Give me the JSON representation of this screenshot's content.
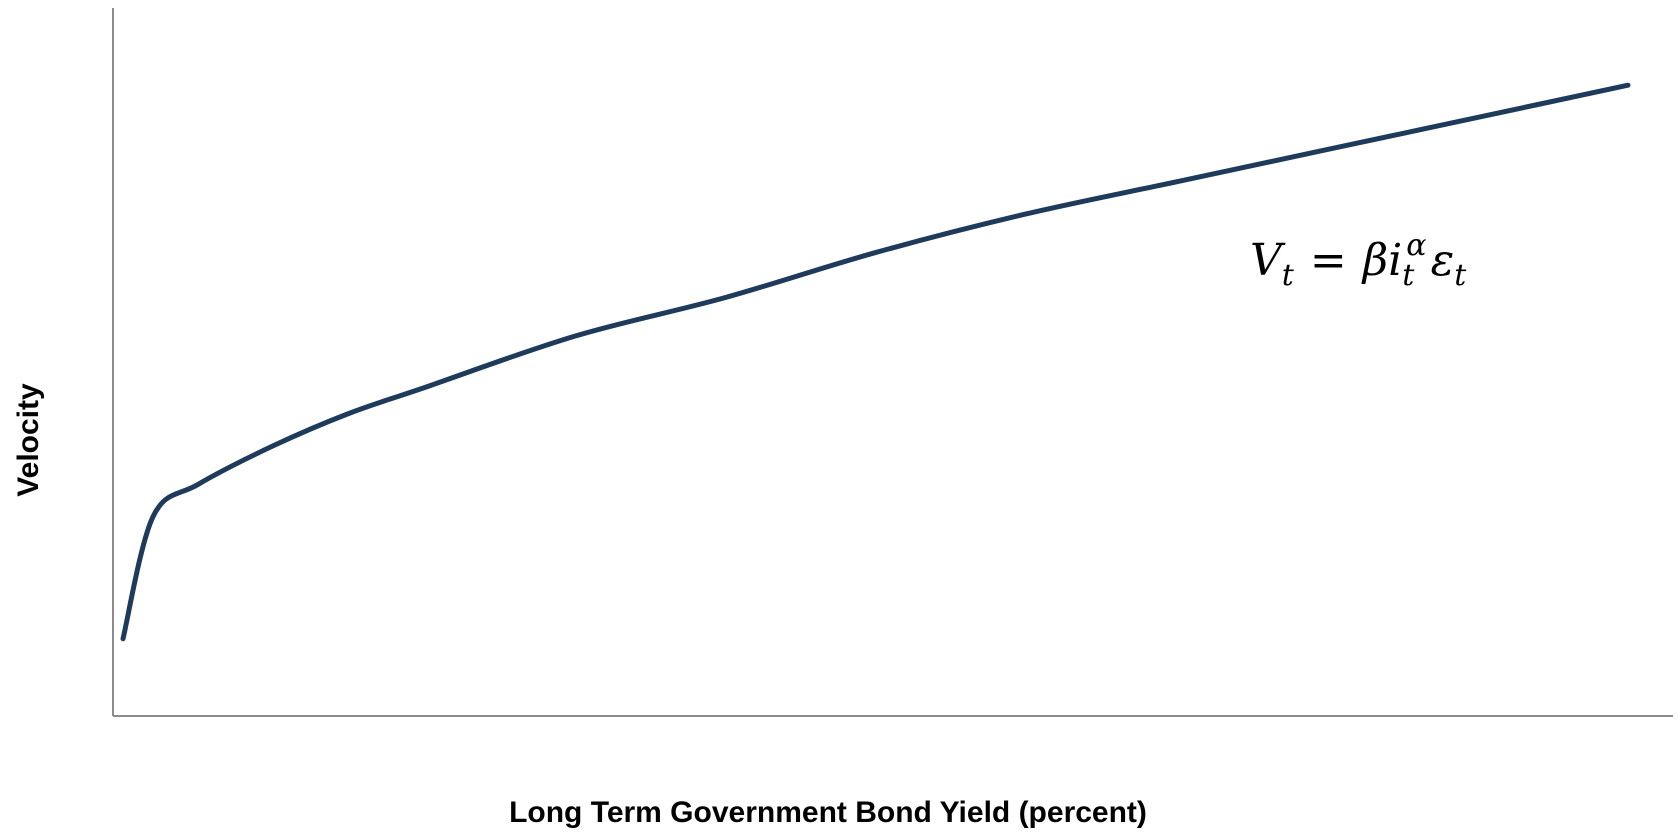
{
  "chart_data": {
    "type": "line",
    "title": "",
    "xlabel": "Long Term Government Bond Yield (percent)",
    "ylabel": "Velocity",
    "grid": false,
    "legend": "none",
    "annotation": {
      "V": "V",
      "t1": "t",
      "eq": "=",
      "beta": "β",
      "i": "i",
      "alpha": "α",
      "t2": "t",
      "eps": "ε",
      "t3": "t"
    },
    "series": [
      {
        "color": "#1f3b5c",
        "x": [
          0,
          0.02,
          0.05,
          0.1,
          0.15,
          0.2,
          0.3,
          0.4,
          0.5,
          0.6,
          0.7,
          0.8,
          0.9,
          1.0
        ],
        "y": [
          0.12,
          0.31,
          0.36,
          0.42,
          0.47,
          0.51,
          0.59,
          0.65,
          0.72,
          0.78,
          0.83,
          0.88,
          0.93,
          0.98
        ]
      }
    ],
    "xlim": [
      0,
      1
    ],
    "ylim": [
      0,
      1.1
    ]
  }
}
